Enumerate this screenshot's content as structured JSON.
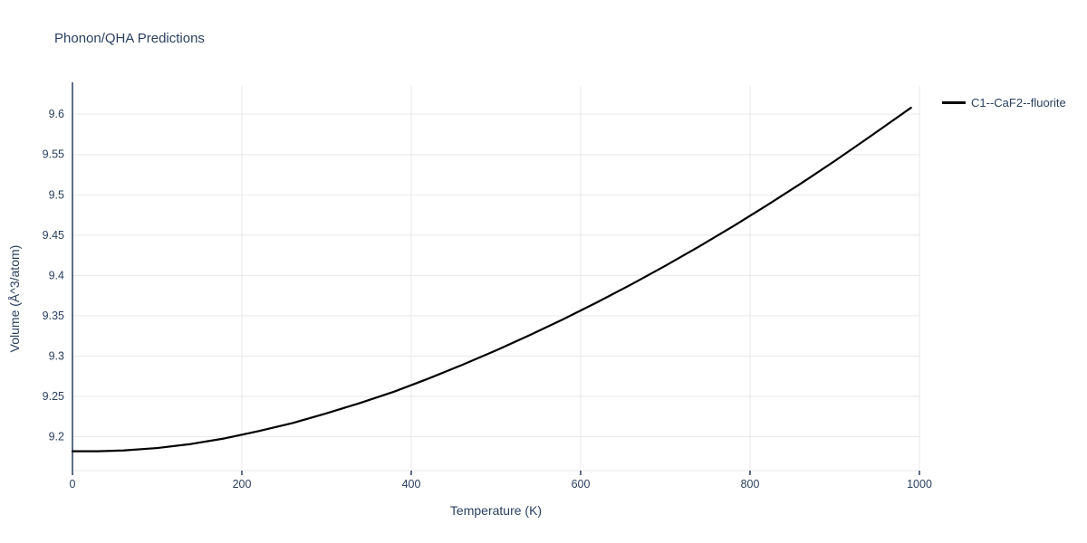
{
  "title": "Phonon/QHA Predictions",
  "legend": {
    "label": "C1--CaF2--fluorite"
  },
  "colors": {
    "text": "#2a3f5f",
    "grid": "#e9e9e9",
    "axis_line": "#2a3f5f",
    "bottom_line": "#e9e9e9",
    "series": "#000000",
    "background": "#ffffff"
  },
  "chart_data": {
    "type": "line",
    "title": "Phonon/QHA Predictions",
    "xlabel": "Temperature (K)",
    "ylabel": "Volume (Å^3/atom)",
    "xlim": [
      0,
      1000
    ],
    "ylim": [
      9.158,
      9.635
    ],
    "x_ticks": [
      0,
      200,
      400,
      600,
      800,
      1000
    ],
    "y_ticks": [
      9.2,
      9.25,
      9.3,
      9.35,
      9.4,
      9.45,
      9.5,
      9.55,
      9.6
    ],
    "grid": true,
    "legend_position": "top-right",
    "series": [
      {
        "name": "C1--CaF2--fluorite",
        "color": "#000000",
        "x": [
          0,
          30,
          60,
          100,
          140,
          180,
          220,
          260,
          300,
          340,
          380,
          420,
          460,
          500,
          540,
          580,
          620,
          660,
          700,
          740,
          780,
          820,
          860,
          900,
          940,
          990
        ],
        "y": [
          9.182,
          9.182,
          9.183,
          9.186,
          9.191,
          9.198,
          9.207,
          9.217,
          9.229,
          9.242,
          9.256,
          9.272,
          9.289,
          9.307,
          9.326,
          9.346,
          9.367,
          9.389,
          9.412,
          9.436,
          9.461,
          9.487,
          9.514,
          9.542,
          9.571,
          9.608
        ]
      }
    ]
  }
}
